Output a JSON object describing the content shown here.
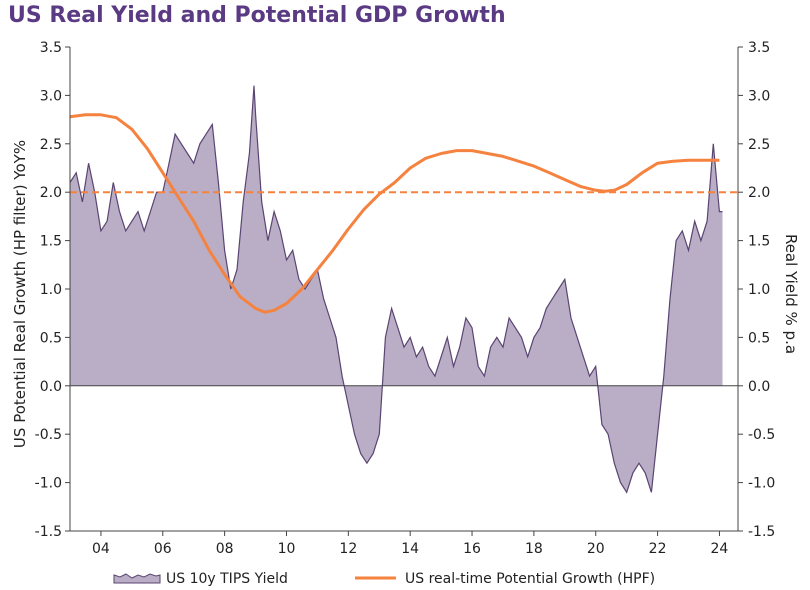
{
  "chart_data": {
    "type": "area",
    "title": "US Real Yield and Potential GDP Growth",
    "ylabel_left": "US Potential Real Growth (HP filter) YoY%",
    "ylabel_right": "Real Yield % p.a",
    "ylim": [
      -1.5,
      3.5
    ],
    "y_ticks": [
      "3.5",
      "3.0",
      "2.5",
      "2.0",
      "1.5",
      "1.0",
      "0.5",
      "0.0",
      "-0.5",
      "-1.0",
      "-1.5"
    ],
    "x_ticks": [
      "04",
      "06",
      "08",
      "10",
      "12",
      "14",
      "16",
      "18",
      "20",
      "22",
      "24"
    ],
    "reference_line": 2.0,
    "colors": {
      "area_fill": "#b9aec6",
      "area_edge": "#5a4472",
      "potential": "#f5823e",
      "dashed": "#f5823e",
      "title": "#5b3a84"
    },
    "series": [
      {
        "name": "US 10y TIPS Yield",
        "kind": "area",
        "x": [
          2003.0,
          2003.2,
          2003.4,
          2003.6,
          2003.8,
          2004.0,
          2004.2,
          2004.4,
          2004.6,
          2004.8,
          2005.0,
          2005.2,
          2005.4,
          2005.6,
          2005.8,
          2006.0,
          2006.2,
          2006.4,
          2006.6,
          2006.8,
          2007.0,
          2007.2,
          2007.4,
          2007.6,
          2007.8,
          2008.0,
          2008.2,
          2008.4,
          2008.6,
          2008.8,
          2008.95,
          2009.0,
          2009.2,
          2009.4,
          2009.6,
          2009.8,
          2010.0,
          2010.2,
          2010.4,
          2010.6,
          2010.8,
          2011.0,
          2011.2,
          2011.4,
          2011.6,
          2011.8,
          2012.0,
          2012.2,
          2012.4,
          2012.6,
          2012.8,
          2013.0,
          2013.2,
          2013.4,
          2013.6,
          2013.8,
          2014.0,
          2014.2,
          2014.4,
          2014.6,
          2014.8,
          2015.0,
          2015.2,
          2015.4,
          2015.6,
          2015.8,
          2016.0,
          2016.2,
          2016.4,
          2016.6,
          2016.8,
          2017.0,
          2017.2,
          2017.4,
          2017.6,
          2017.8,
          2018.0,
          2018.2,
          2018.4,
          2018.6,
          2018.8,
          2019.0,
          2019.2,
          2019.4,
          2019.6,
          2019.8,
          2020.0,
          2020.2,
          2020.4,
          2020.6,
          2020.8,
          2021.0,
          2021.2,
          2021.4,
          2021.6,
          2021.8,
          2022.0,
          2022.2,
          2022.4,
          2022.6,
          2022.8,
          2023.0,
          2023.2,
          2023.4,
          2023.6,
          2023.8,
          2024.0,
          2024.1
        ],
        "values": [
          2.1,
          2.2,
          1.9,
          2.3,
          2.0,
          1.6,
          1.7,
          2.1,
          1.8,
          1.6,
          1.7,
          1.8,
          1.6,
          1.8,
          2.0,
          2.0,
          2.3,
          2.6,
          2.5,
          2.4,
          2.3,
          2.5,
          2.6,
          2.7,
          2.1,
          1.4,
          1.0,
          1.2,
          1.9,
          2.4,
          3.1,
          2.8,
          1.9,
          1.5,
          1.8,
          1.6,
          1.3,
          1.4,
          1.1,
          1.0,
          1.1,
          1.2,
          0.9,
          0.7,
          0.5,
          0.1,
          -0.2,
          -0.5,
          -0.7,
          -0.8,
          -0.7,
          -0.5,
          0.5,
          0.8,
          0.6,
          0.4,
          0.5,
          0.3,
          0.4,
          0.2,
          0.1,
          0.3,
          0.5,
          0.2,
          0.4,
          0.7,
          0.6,
          0.2,
          0.1,
          0.4,
          0.5,
          0.4,
          0.7,
          0.6,
          0.5,
          0.3,
          0.5,
          0.6,
          0.8,
          0.9,
          1.0,
          1.1,
          0.7,
          0.5,
          0.3,
          0.1,
          0.2,
          -0.4,
          -0.5,
          -0.8,
          -1.0,
          -1.1,
          -0.9,
          -0.8,
          -0.9,
          -1.1,
          -0.5,
          0.1,
          0.9,
          1.5,
          1.6,
          1.4,
          1.7,
          1.5,
          1.7,
          2.5,
          1.8,
          1.8
        ]
      },
      {
        "name": "US real-time Potential Growth (HPF)",
        "kind": "line",
        "x": [
          2003.0,
          2003.5,
          2004.0,
          2004.5,
          2005.0,
          2005.5,
          2006.0,
          2006.5,
          2007.0,
          2007.5,
          2008.0,
          2008.5,
          2009.0,
          2009.3,
          2009.6,
          2010.0,
          2010.5,
          2011.0,
          2011.5,
          2012.0,
          2012.5,
          2013.0,
          2013.5,
          2014.0,
          2014.5,
          2015.0,
          2015.5,
          2016.0,
          2016.5,
          2017.0,
          2017.5,
          2018.0,
          2018.5,
          2019.0,
          2019.5,
          2020.0,
          2020.3,
          2020.6,
          2021.0,
          2021.5,
          2022.0,
          2022.5,
          2023.0,
          2023.5,
          2024.0
        ],
        "values": [
          2.78,
          2.8,
          2.8,
          2.77,
          2.65,
          2.45,
          2.2,
          1.95,
          1.7,
          1.4,
          1.15,
          0.92,
          0.8,
          0.76,
          0.78,
          0.85,
          1.0,
          1.2,
          1.4,
          1.62,
          1.82,
          1.98,
          2.1,
          2.25,
          2.35,
          2.4,
          2.43,
          2.43,
          2.4,
          2.37,
          2.32,
          2.27,
          2.2,
          2.13,
          2.06,
          2.02,
          2.01,
          2.02,
          2.08,
          2.2,
          2.3,
          2.32,
          2.33,
          2.33,
          2.33
        ]
      }
    ],
    "legend": [
      "US 10y TIPS Yield",
      "US real-time Potential Growth (HPF)"
    ]
  }
}
